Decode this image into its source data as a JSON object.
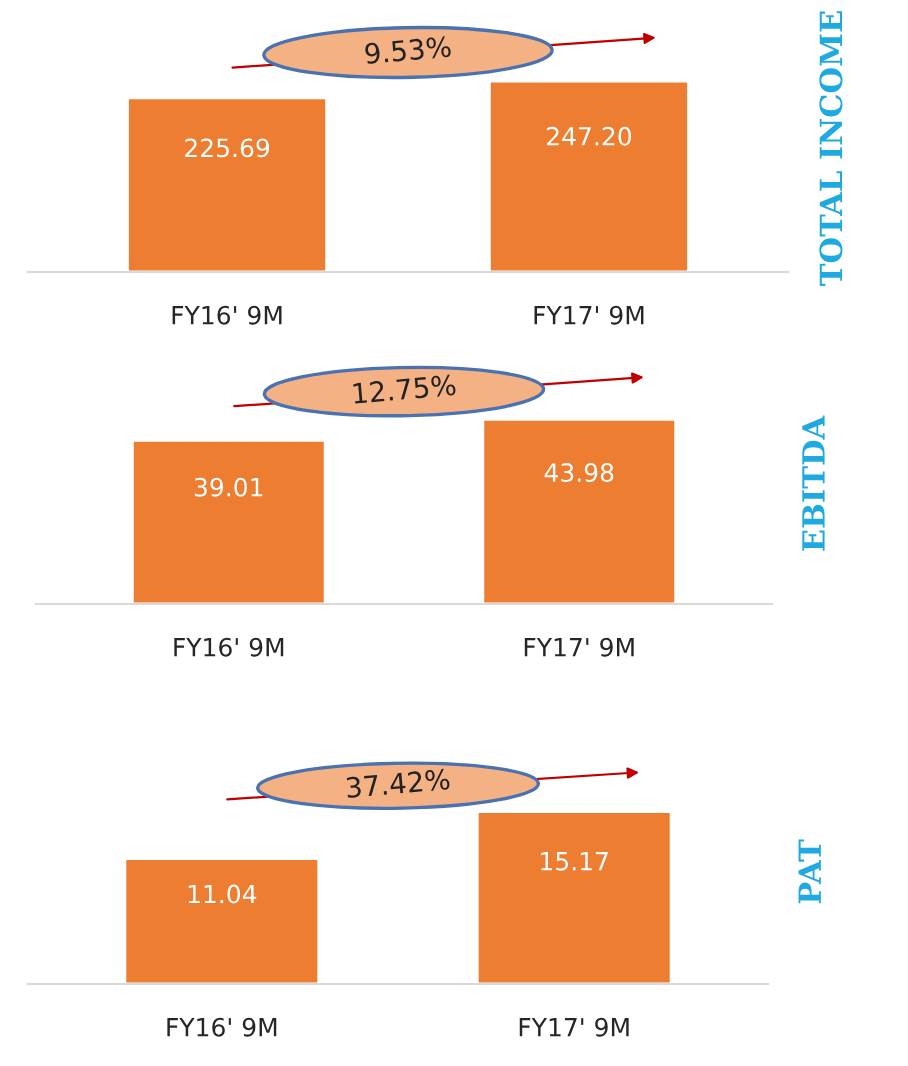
{
  "chart_data": [
    {
      "type": "bar",
      "categories": [
        "FY16' 9M",
        "FY17' 9M"
      ],
      "values": [
        225.69,
        247.2
      ],
      "value_labels": [
        "225.69",
        "247.20"
      ],
      "color": "#ed7d31",
      "ylabel": "TOTAL INCOME",
      "annotations": [
        "9.53%"
      ],
      "tick_labels": "x",
      "grid": false,
      "legend": false
    },
    {
      "type": "bar",
      "categories": [
        "FY16' 9M",
        "FY17' 9M"
      ],
      "values": [
        39.01,
        43.98
      ],
      "value_labels": [
        "39.01",
        "43.98"
      ],
      "color": "#ed7d31",
      "ylabel": "EBITDA",
      "annotations": [
        "12.75%"
      ],
      "tick_labels": "x",
      "grid": false,
      "legend": false
    },
    {
      "type": "bar",
      "categories": [
        "FY16' 9M",
        "FY17' 9M"
      ],
      "values": [
        11.04,
        15.17
      ],
      "value_labels": [
        "11.04",
        "15.17"
      ],
      "color": "#ed7d31",
      "ylabel": "PAT",
      "annotations": [
        "37.42%"
      ],
      "tick_labels": "x",
      "grid": false,
      "legend": false
    }
  ]
}
